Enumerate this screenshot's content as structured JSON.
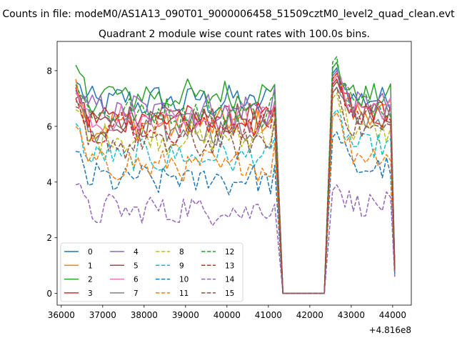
{
  "figure": {
    "suptitle": "Counts in file: modeM0/AS1A13_090T01_9000006458_51509cztM0_level2_quad_clean.evt",
    "title": "Quadrant 2 module wise count rates with 100.0s bins.",
    "x_offset_label": "+4.816e8"
  },
  "chart_data": {
    "type": "line",
    "title": "Quadrant 2 module wise count rates with 100.0s bins.",
    "xlabel": "",
    "ylabel": "",
    "x_offset": 481600000,
    "xlim": [
      35900,
      44450
    ],
    "ylim": [
      -0.42,
      9.05
    ],
    "x_ticks": [
      36000,
      37000,
      38000,
      39000,
      40000,
      41000,
      42000,
      43000,
      44000
    ],
    "y_ticks": [
      0,
      2,
      4,
      6,
      8
    ],
    "grid": false,
    "legend_position": "lower-left",
    "legend_columns": 4,
    "time_bin_s": 100,
    "segments": [
      {
        "x_start": 36350,
        "x_end": 41150
      },
      {
        "x_start": 41150,
        "x_end": 42550,
        "gap": true
      },
      {
        "x_start": 42550,
        "x_end": 44050
      }
    ],
    "series": [
      {
        "name": "0",
        "color": "#1f77b4",
        "dash": "solid",
        "seg1_level": 6.9,
        "seg1_start": 7.6,
        "seg1_end": 7.5,
        "seg2_start": 8.1,
        "seg2_level": 7.0,
        "seg2_end": 1.0
      },
      {
        "name": "1",
        "color": "#ff7f0e",
        "dash": "solid",
        "seg1_level": 6.1,
        "seg1_start": 7.7,
        "seg1_end": 6.9,
        "seg2_start": 7.9,
        "seg2_level": 6.5,
        "seg2_end": 0.9
      },
      {
        "name": "2",
        "color": "#2ca02c",
        "dash": "solid",
        "seg1_level": 7.1,
        "seg1_start": 8.2,
        "seg1_end": 7.5,
        "seg2_start": 8.3,
        "seg2_level": 7.1,
        "seg2_end": 1.0
      },
      {
        "name": "3",
        "color": "#d62728",
        "dash": "solid",
        "seg1_level": 6.3,
        "seg1_start": 7.4,
        "seg1_end": 6.8,
        "seg2_start": 7.7,
        "seg2_level": 6.6,
        "seg2_end": 0.9
      },
      {
        "name": "4",
        "color": "#9467bd",
        "dash": "solid",
        "seg1_level": 6.6,
        "seg1_start": 7.3,
        "seg1_end": 7.4,
        "seg2_start": 8.0,
        "seg2_level": 6.8,
        "seg2_end": 1.0
      },
      {
        "name": "5",
        "color": "#8c564b",
        "dash": "solid",
        "seg1_level": 6.2,
        "seg1_start": 7.0,
        "seg1_end": 6.7,
        "seg2_start": 7.6,
        "seg2_level": 6.5,
        "seg2_end": 0.9
      },
      {
        "name": "6",
        "color": "#e377c2",
        "dash": "solid",
        "seg1_level": 6.3,
        "seg1_start": 7.2,
        "seg1_end": 6.9,
        "seg2_start": 7.8,
        "seg2_level": 6.7,
        "seg2_end": 0.9
      },
      {
        "name": "7",
        "color": "#7f7f7f",
        "dash": "solid",
        "seg1_level": 5.9,
        "seg1_start": 6.9,
        "seg1_end": 6.6,
        "seg2_start": 7.4,
        "seg2_level": 6.3,
        "seg2_end": 0.9
      },
      {
        "name": "8",
        "color": "#bcbd22",
        "dash": "dashed",
        "seg1_level": 5.6,
        "seg1_start": 6.6,
        "seg1_end": 6.3,
        "seg2_start": 7.2,
        "seg2_level": 5.8,
        "seg2_end": 0.8
      },
      {
        "name": "9",
        "color": "#17becf",
        "dash": "dashed",
        "seg1_level": 4.9,
        "seg1_start": 6.1,
        "seg1_end": 5.6,
        "seg2_start": 6.6,
        "seg2_level": 5.3,
        "seg2_end": 0.8
      },
      {
        "name": "10",
        "color": "#1f77b4",
        "dash": "dashed",
        "seg1_level": 4.1,
        "seg1_start": 5.1,
        "seg1_end": 4.6,
        "seg2_start": 5.8,
        "seg2_level": 4.5,
        "seg2_end": 0.7
      },
      {
        "name": "11",
        "color": "#ff7f0e",
        "dash": "dashed",
        "seg1_level": 4.6,
        "seg1_start": 6.0,
        "seg1_end": 5.4,
        "seg2_start": 6.5,
        "seg2_level": 5.0,
        "seg2_end": 0.8
      },
      {
        "name": "12",
        "color": "#2ca02c",
        "dash": "dashed",
        "seg1_level": 6.5,
        "seg1_start": 7.5,
        "seg1_end": 7.2,
        "seg2_start": 8.5,
        "seg2_level": 6.8,
        "seg2_end": 1.0
      },
      {
        "name": "13",
        "color": "#d62728",
        "dash": "dashed",
        "seg1_level": 6.0,
        "seg1_start": 7.0,
        "seg1_end": 6.7,
        "seg2_start": 7.9,
        "seg2_level": 6.4,
        "seg2_end": 0.9
      },
      {
        "name": "14",
        "color": "#9467bd",
        "dash": "dashed",
        "seg1_level": 3.0,
        "seg1_start": 3.9,
        "seg1_end": 3.2,
        "seg2_start": 3.9,
        "seg2_level": 3.2,
        "seg2_end": 0.6
      },
      {
        "name": "15",
        "color": "#8c564b",
        "dash": "dashed",
        "seg1_level": 5.4,
        "seg1_start": 6.7,
        "seg1_end": 6.2,
        "seg2_start": 7.4,
        "seg2_level": 5.9,
        "seg2_end": 0.8
      }
    ]
  }
}
